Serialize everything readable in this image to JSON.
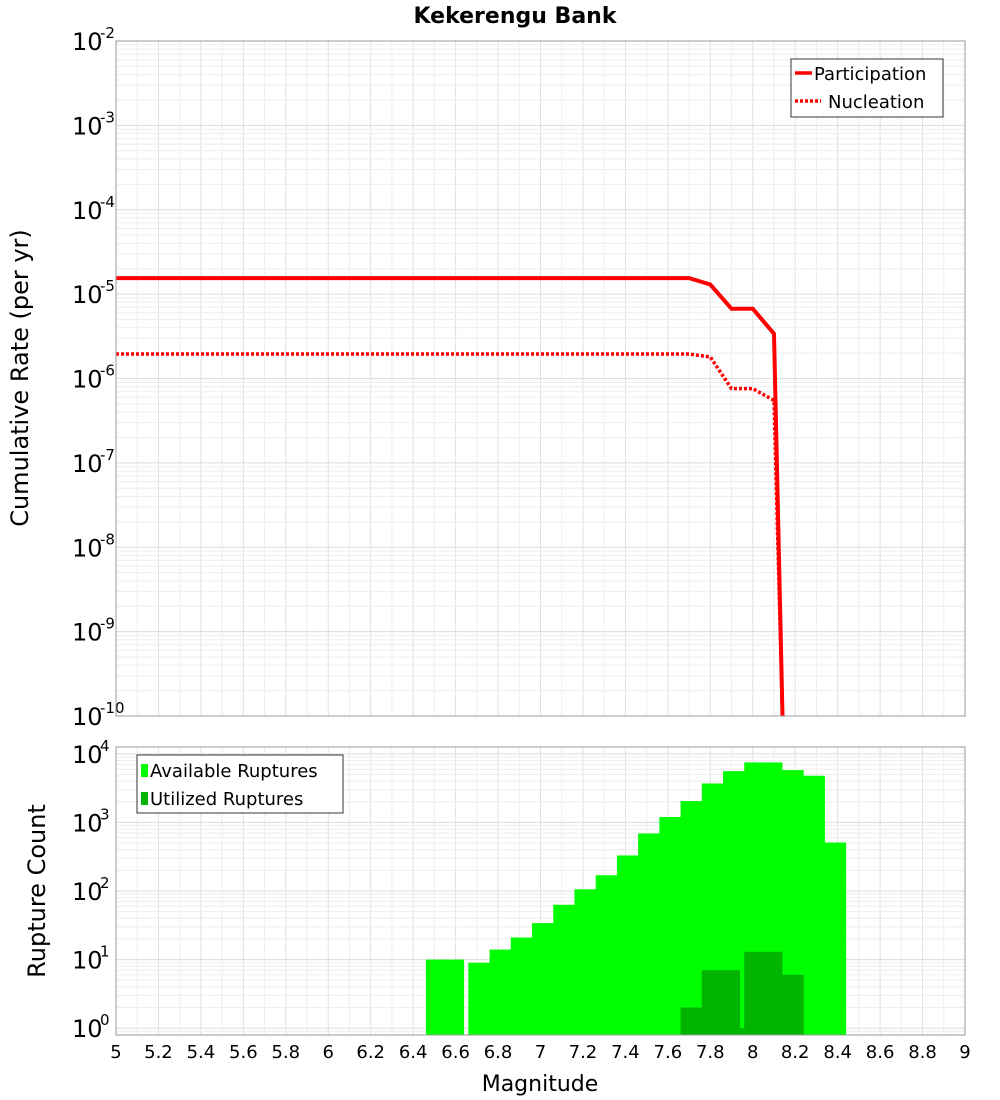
{
  "chart_data": [
    {
      "type": "line",
      "title": "Kekerengu Bank",
      "xlabel": "",
      "ylabel": "Cumulative Rate (per yr)",
      "xlim": [
        5,
        9
      ],
      "ylim_log10": [
        -10,
        -2
      ],
      "ytick_base": "10",
      "yticks_exp": [
        "-10",
        "-9",
        "-8",
        "-7",
        "-6",
        "-5",
        "-4",
        "-3",
        "-2"
      ],
      "grid": true,
      "legend": {
        "placement": "top-right",
        "entries": [
          {
            "label": "Participation",
            "style": "solid"
          },
          {
            "label": "Nucleation",
            "style": "dotted"
          }
        ]
      },
      "series": [
        {
          "name": "Participation",
          "color": "#ff0000",
          "points": [
            [
              5.0,
              1.55e-05
            ],
            [
              7.7,
              1.55e-05
            ],
            [
              7.8,
              1.3e-05
            ],
            [
              7.9,
              6.7e-06
            ],
            [
              8.0,
              6.7e-06
            ],
            [
              8.1,
              3.4e-06
            ],
            [
              8.14,
              1e-10
            ]
          ]
        },
        {
          "name": "Nucleation",
          "color": "#ff0000",
          "points": [
            [
              5.0,
              1.95e-06
            ],
            [
              7.7,
              1.95e-06
            ],
            [
              7.8,
              1.8e-06
            ],
            [
              7.9,
              7.6e-07
            ],
            [
              8.0,
              7.6e-07
            ],
            [
              8.1,
              5.5e-07
            ],
            [
              8.14,
              1e-10
            ]
          ]
        }
      ]
    },
    {
      "type": "bar",
      "title": "",
      "xlabel": "Magnitude",
      "ylabel": "Rupture Count",
      "xlim": [
        5,
        9
      ],
      "ylim_log10": [
        -0.1,
        4.1
      ],
      "ytick_base": "10",
      "yticks_exp": [
        "0",
        "1",
        "2",
        "3",
        "4"
      ],
      "xticks": [
        "5",
        "5.2",
        "5.4",
        "5.6",
        "5.8",
        "6",
        "6.2",
        "6.4",
        "6.6",
        "6.8",
        "7",
        "7.2",
        "7.4",
        "7.6",
        "7.8",
        "8",
        "8.2",
        "8.4",
        "8.6",
        "8.8",
        "9"
      ],
      "grid": true,
      "legend": {
        "placement": "top-left",
        "entries": [
          {
            "label": "Available Ruptures",
            "color": "#00ff00"
          },
          {
            "label": "Utilized Ruptures",
            "color": "#00b400"
          }
        ]
      },
      "series": [
        {
          "name": "Available Ruptures",
          "color": "#00ff00",
          "x": [
            6.55,
            6.75,
            6.85,
            6.95,
            7.05,
            7.15,
            7.25,
            7.35,
            7.45,
            7.55,
            7.65,
            7.75,
            7.85,
            7.95,
            8.05,
            8.15,
            8.25,
            8.35
          ],
          "values": [
            10,
            9,
            14,
            21,
            34,
            63,
            106,
            170,
            330,
            690,
            1200,
            2050,
            3700,
            5600,
            7500,
            5800,
            4800,
            510
          ]
        },
        {
          "name": "Utilized Ruptures",
          "color": "#00b400",
          "x": [
            7.75,
            7.85,
            7.95,
            8.05,
            8.15
          ],
          "values": [
            2,
            7,
            1,
            13,
            6
          ]
        }
      ]
    }
  ]
}
